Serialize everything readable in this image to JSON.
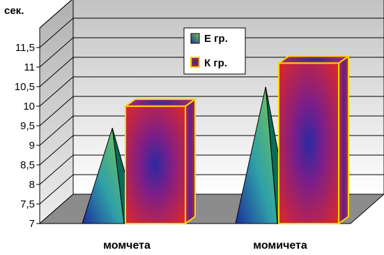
{
  "chart_data": {
    "type": "bar",
    "ylabel": "сек.",
    "ylim": [
      7,
      12
    ],
    "yticks": [
      "7",
      "7,5",
      "8",
      "8,5",
      "9",
      "9,5",
      "10",
      "10,5",
      "11",
      "11,5"
    ],
    "categories": [
      "момчета",
      "момичета"
    ],
    "series": [
      {
        "name": "Е гр.",
        "shape": "pyramid",
        "values": [
          9.3,
          10.35
        ]
      },
      {
        "name": "К гр.",
        "shape": "box",
        "values": [
          10.0,
          11.1
        ]
      }
    ],
    "grid": true,
    "legend": "top-center",
    "colors": {
      "pyramid_gradient": [
        "#1c2f9c",
        "#2fa0a8",
        "#7ac84e"
      ],
      "box_edge": "#f5d800",
      "box_outer": "#e02828",
      "box_inner": "#2a2aa0",
      "wall_top": "#c2c2c2",
      "wall_bottom": "#ffffff",
      "floor": "#8c8c8c"
    }
  }
}
